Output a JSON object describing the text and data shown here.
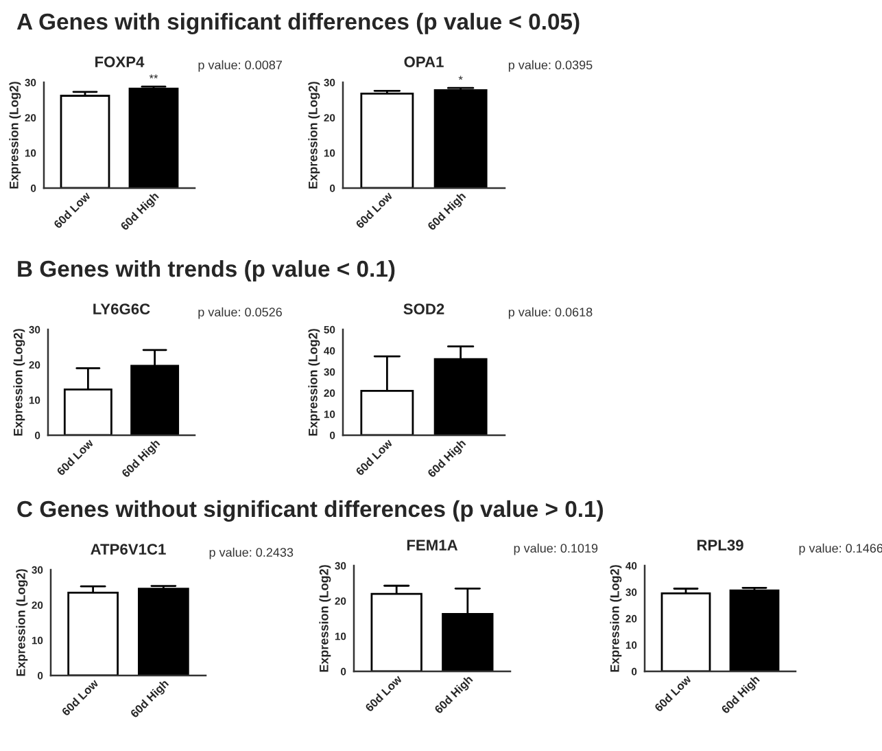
{
  "chart_data": [
    {
      "type": "bar",
      "subtitle": "A Genes with significant differences (p value < 0.05)",
      "title": "FOXP4",
      "ylabel": "Expression (Log2)",
      "categories": [
        "60d Low",
        "60d High"
      ],
      "values": [
        26.2,
        28.2
      ],
      "errors": [
        [
          26.2,
          27.3
        ],
        [
          28.2,
          28.8
        ]
      ],
      "colors": [
        "#ffffff",
        "#000000"
      ],
      "ylim": [
        0,
        30
      ],
      "yticks": [
        0,
        10,
        20,
        30
      ],
      "annotations": [
        "p value: 0.0087",
        {
          "text": "**",
          "x": "60d High",
          "y": 28.8
        }
      ]
    },
    {
      "type": "bar",
      "title": "OPA1",
      "ylabel": "Expression (Log2)",
      "categories": [
        "60d Low",
        "60d High"
      ],
      "values": [
        26.8,
        27.8
      ],
      "errors": [
        [
          26.8,
          27.6
        ],
        [
          27.8,
          28.4
        ]
      ],
      "colors": [
        "#ffffff",
        "#000000"
      ],
      "ylim": [
        0,
        30
      ],
      "yticks": [
        0,
        10,
        20,
        30
      ],
      "annotations": [
        "p value: 0.0395",
        {
          "text": "*",
          "x": "60d High",
          "y": 28.4
        }
      ]
    },
    {
      "type": "bar",
      "subtitle": "B Genes with trends (p value < 0.1)",
      "title": "LY6G6C",
      "ylabel": "Expression (Log2)",
      "categories": [
        "60d Low",
        "60d High"
      ],
      "values": [
        13,
        19.7
      ],
      "errors": [
        [
          13,
          19
        ],
        [
          19.7,
          24.2
        ]
      ],
      "colors": [
        "#ffffff",
        "#000000"
      ],
      "ylim": [
        0,
        30
      ],
      "yticks": [
        0,
        10,
        20,
        30
      ],
      "annotations": [
        "p value: 0.0526"
      ]
    },
    {
      "type": "bar",
      "title": "SOD2",
      "ylabel": "Expression (Log2)",
      "categories": [
        "60d Low",
        "60d High"
      ],
      "values": [
        21,
        36
      ],
      "errors": [
        [
          21,
          37.3
        ],
        [
          36,
          42
        ]
      ],
      "colors": [
        "#ffffff",
        "#000000"
      ],
      "ylim": [
        0,
        50
      ],
      "yticks": [
        0,
        10,
        20,
        30,
        40,
        50
      ],
      "annotations": [
        "p value: 0.0618"
      ]
    },
    {
      "type": "bar",
      "subtitle": "C Genes without significant differences (p value > 0.1)",
      "title": "ATP6V1C1",
      "ylabel": "Expression (Log2)",
      "categories": [
        "60d Low",
        "60d High"
      ],
      "values": [
        23.5,
        24.6
      ],
      "errors": [
        [
          23.5,
          25.3
        ],
        [
          24.6,
          25.4
        ]
      ],
      "colors": [
        "#ffffff",
        "#000000"
      ],
      "ylim": [
        0,
        30
      ],
      "yticks": [
        0,
        10,
        20,
        30
      ],
      "annotations": [
        "p value: 0.2433"
      ]
    },
    {
      "type": "bar",
      "title": "FEM1A",
      "ylabel": "Expression (Log2)",
      "categories": [
        "60d Low",
        "60d High"
      ],
      "values": [
        22,
        16.3
      ],
      "errors": [
        [
          22,
          24.3
        ],
        [
          16.3,
          23.5
        ]
      ],
      "colors": [
        "#ffffff",
        "#000000"
      ],
      "ylim": [
        0,
        30
      ],
      "yticks": [
        0,
        10,
        20,
        30
      ],
      "annotations": [
        "p value: 0.1019"
      ]
    },
    {
      "type": "bar",
      "title": "RPL39",
      "ylabel": "Expression (Log2)",
      "categories": [
        "60d Low",
        "60d High"
      ],
      "values": [
        29.5,
        30.6
      ],
      "errors": [
        [
          29.5,
          31.3
        ],
        [
          30.6,
          31.6
        ]
      ],
      "colors": [
        "#ffffff",
        "#000000"
      ],
      "ylim": [
        0,
        40
      ],
      "yticks": [
        0,
        10,
        20,
        30,
        40
      ],
      "annotations": [
        "p value: 0.1466"
      ]
    }
  ]
}
